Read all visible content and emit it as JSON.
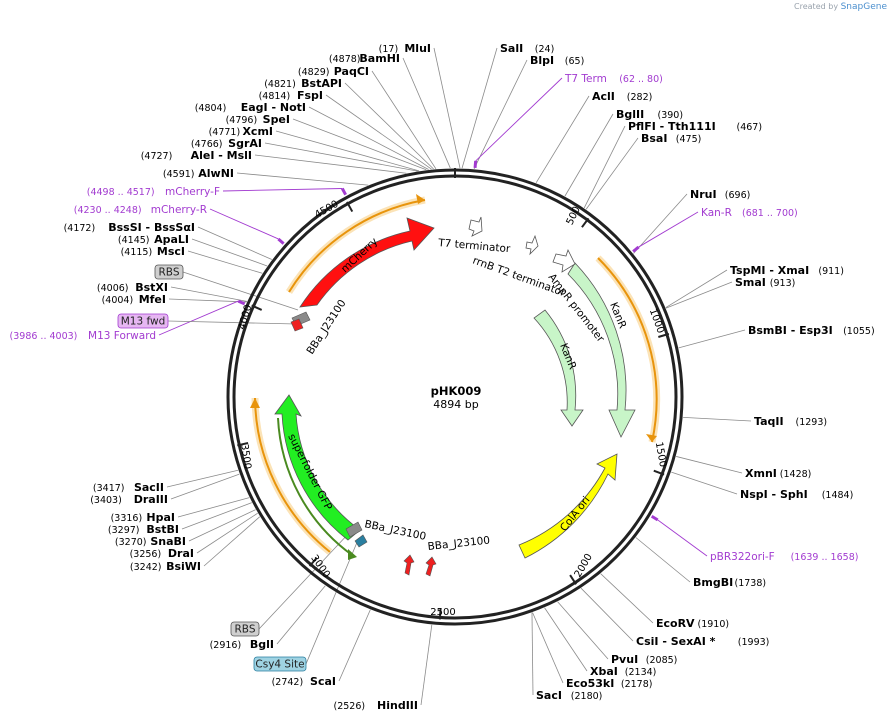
{
  "credit": {
    "prefix": "Created by",
    "brand": "SnapGene"
  },
  "plasmid": {
    "name": "pHK009",
    "size_label": "4894 bp",
    "length": 4894
  },
  "ticks": [
    {
      "pos": 500,
      "label": "500"
    },
    {
      "pos": 1000,
      "label": "1000"
    },
    {
      "pos": 1500,
      "label": "1500"
    },
    {
      "pos": 2000,
      "label": "2000"
    },
    {
      "pos": 2500,
      "label": "2500"
    },
    {
      "pos": 3000,
      "label": "3000"
    },
    {
      "pos": 3500,
      "label": "3500"
    },
    {
      "pos": 4000,
      "label": "4000"
    },
    {
      "pos": 4500,
      "label": "4500"
    }
  ],
  "enzymes": [
    {
      "name": "MluI",
      "pos": "(17)",
      "side": "left",
      "bp": 17
    },
    {
      "name": "SalI",
      "pos": "(24)",
      "side": "right",
      "bp": 24
    },
    {
      "name": "BlpI",
      "pos": "(65)",
      "side": "right",
      "bp": 65
    },
    {
      "name": "AclI",
      "pos": "(282)",
      "side": "right",
      "bp": 282
    },
    {
      "name": "BglII",
      "pos": "(390)",
      "side": "right",
      "bp": 390
    },
    {
      "name": "PflFI - Tth111I",
      "pos": "(467)",
      "side": "right",
      "bp": 467
    },
    {
      "name": "BsaI",
      "pos": "(475)",
      "side": "right",
      "bp": 475
    },
    {
      "name": "NruI",
      "pos": "(696)",
      "side": "right",
      "bp": 696
    },
    {
      "name": "TspMI - XmaI",
      "pos": "(911)",
      "side": "right",
      "bp": 911
    },
    {
      "name": "SmaI",
      "pos": "(913)",
      "side": "right",
      "bp": 913
    },
    {
      "name": "BsmBI - Esp3I",
      "pos": "(1055)",
      "side": "right",
      "bp": 1055
    },
    {
      "name": "TaqII",
      "pos": "(1293)",
      "side": "right",
      "bp": 1293
    },
    {
      "name": "XmnI",
      "pos": "(1428)",
      "side": "right",
      "bp": 1428
    },
    {
      "name": "NspI - SphI",
      "pos": "(1484)",
      "side": "right",
      "bp": 1484
    },
    {
      "name": "BmgBI",
      "pos": "(1738)",
      "side": "right",
      "bp": 1738
    },
    {
      "name": "EcoRV",
      "pos": "(1910)",
      "side": "right",
      "bp": 1910
    },
    {
      "name": "CsiI - SexAI *",
      "pos": "(1993)",
      "side": "right",
      "bp": 1993
    },
    {
      "name": "PvuI",
      "pos": "(2085)",
      "side": "right",
      "bp": 2085
    },
    {
      "name": "XbaI",
      "pos": "(2134)",
      "side": "right",
      "bp": 2134
    },
    {
      "name": "Eco53kI",
      "pos": "(2178)",
      "side": "right",
      "bp": 2178
    },
    {
      "name": "SacI",
      "pos": "(2180)",
      "side": "right",
      "bp": 2180
    },
    {
      "name": "HindIII",
      "pos": "(2526)",
      "side": "left",
      "bp": 2526
    },
    {
      "name": "ScaI",
      "pos": "(2742)",
      "side": "left",
      "bp": 2742
    },
    {
      "name": "BglI",
      "pos": "(2916)",
      "side": "left",
      "bp": 2916
    },
    {
      "name": "BsiWI",
      "pos": "(3242)",
      "side": "left",
      "bp": 3242
    },
    {
      "name": "DraI",
      "pos": "(3256)",
      "side": "left",
      "bp": 3256
    },
    {
      "name": "SnaBI",
      "pos": "(3270)",
      "side": "left",
      "bp": 3270
    },
    {
      "name": "BstBI",
      "pos": "(3297)",
      "side": "left",
      "bp": 3297
    },
    {
      "name": "HpaI",
      "pos": "(3316)",
      "side": "left",
      "bp": 3316
    },
    {
      "name": "DraIII",
      "pos": "(3403)",
      "side": "left",
      "bp": 3403
    },
    {
      "name": "SacII",
      "pos": "(3417)",
      "side": "left",
      "bp": 3417
    },
    {
      "name": "MfeI",
      "pos": "(4004)",
      "side": "left",
      "bp": 4004
    },
    {
      "name": "BstXI",
      "pos": "(4006)",
      "side": "left",
      "bp": 4006
    },
    {
      "name": "MscI",
      "pos": "(4115)",
      "side": "left",
      "bp": 4115
    },
    {
      "name": "ApaLI",
      "pos": "(4145)",
      "side": "left",
      "bp": 4145
    },
    {
      "name": "BssSI - BssSαI",
      "pos": "(4172)",
      "side": "left",
      "bp": 4172
    },
    {
      "name": "AlwNI",
      "pos": "(4591)",
      "side": "left",
      "bp": 4591
    },
    {
      "name": "AleI - MslI",
      "pos": "(4727)",
      "side": "left",
      "bp": 4727
    },
    {
      "name": "SgrAI",
      "pos": "(4766)",
      "side": "left",
      "bp": 4766
    },
    {
      "name": "XcmI",
      "pos": "(4771)",
      "side": "left",
      "bp": 4771
    },
    {
      "name": "SpeI",
      "pos": "(4796)",
      "side": "left",
      "bp": 4796
    },
    {
      "name": "EagI - NotI",
      "pos": "(4804)",
      "side": "left",
      "bp": 4804
    },
    {
      "name": "FspI",
      "pos": "(4814)",
      "side": "left",
      "bp": 4814
    },
    {
      "name": "BstAPI",
      "pos": "(4821)",
      "side": "left",
      "bp": 4821
    },
    {
      "name": "PaqCI",
      "pos": "(4829)",
      "side": "left",
      "bp": 4829
    },
    {
      "name": "BamHI",
      "pos": "(4878)",
      "side": "left",
      "bp": 4878
    }
  ],
  "primers": [
    {
      "name": "T7 Term",
      "range": "(62 .. 80)",
      "side": "right"
    },
    {
      "name": "Kan-R",
      "range": "(681 .. 700)",
      "side": "right"
    },
    {
      "name": "pBR322ori-F",
      "range": "(1639 .. 1658)",
      "side": "right"
    },
    {
      "name": "mCherry-F",
      "range": "(4498 .. 4517)",
      "side": "left"
    },
    {
      "name": "mCherry-R",
      "range": "(4230 .. 4248)",
      "side": "left"
    },
    {
      "name": "M13 Forward",
      "range": "(3986 .. 4003)",
      "side": "left"
    }
  ],
  "boxed_labels": [
    {
      "name": "RBS",
      "style": "gray"
    },
    {
      "name": "M13 fwd",
      "style": "purple"
    },
    {
      "name": "RBS",
      "style": "gray"
    },
    {
      "name": "Csy4 Site",
      "style": "teal"
    }
  ],
  "features": [
    {
      "name": "mCherry",
      "color": "#ff1010"
    },
    {
      "name": "superfolder GFP",
      "color": "#22ee22"
    },
    {
      "name": "KanR",
      "color": "#c8f5c8"
    },
    {
      "name": "KanR",
      "color": "#c8f5c8"
    },
    {
      "name": "ColA ori",
      "color": "#ffff00"
    },
    {
      "name": "AmpR promoter",
      "color": "#ffffff"
    },
    {
      "name": "T7 terminator",
      "color": "#ffffff"
    },
    {
      "name": "rrnB T2 terminator",
      "color": "#ffffff"
    },
    {
      "name": "BBa_J23100",
      "color": "#ff2020"
    },
    {
      "name": "BBa_J23100",
      "color": "#ff2020"
    },
    {
      "name": "BBa_J23100",
      "color": "#ff2020"
    }
  ],
  "colors": {
    "primer": "#a23bd0",
    "backbone": "#222222",
    "orf": "#f0a030"
  }
}
